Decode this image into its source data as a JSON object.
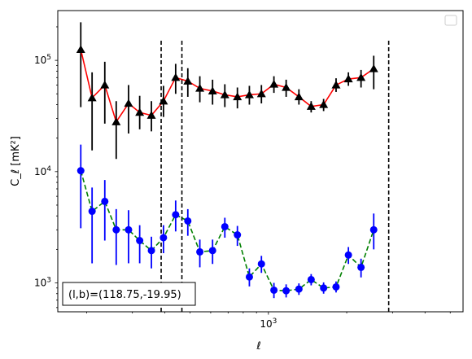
{
  "chart_data": {
    "type": "line",
    "xlabel": "ℓ",
    "ylabel": "C_ℓ [mK²]",
    "xscale": "log",
    "yscale": "log",
    "xlim": [
      155,
      5600
    ],
    "ylim": [
      550,
      280000
    ],
    "x_tick_labels": [
      {
        "value": 1000,
        "base": "10",
        "exp": "3"
      }
    ],
    "y_tick_labels": [
      {
        "value": 1000,
        "base": "10",
        "exp": "3"
      },
      {
        "value": 10000,
        "base": "10",
        "exp": "4"
      },
      {
        "value": 100000,
        "base": "10",
        "exp": "5"
      }
    ],
    "vlines": [
      387,
      465,
      2900
    ],
    "annotation": "(l,b)=(118.75,-19.95)",
    "legend": {
      "location": "top-right",
      "entries": []
    },
    "series": [
      {
        "line_color": "#ff0000",
        "marker_color": "#000000",
        "errorbar_color": "#000000",
        "marker": "triangle",
        "linestyle": "solid",
        "points": [
          {
            "x": 190,
            "y": 125000,
            "lo": 38000,
            "hi": 220000
          },
          {
            "x": 210,
            "y": 46000,
            "lo": 15500,
            "hi": 78000
          },
          {
            "x": 235,
            "y": 60000,
            "lo": 27000,
            "hi": 97000
          },
          {
            "x": 260,
            "y": 28000,
            "lo": 13000,
            "hi": 43000
          },
          {
            "x": 290,
            "y": 41000,
            "lo": 22000,
            "hi": 60000
          },
          {
            "x": 320,
            "y": 34000,
            "lo": 24000,
            "hi": 48000
          },
          {
            "x": 355,
            "y": 32000,
            "lo": 23000,
            "hi": 43000
          },
          {
            "x": 395,
            "y": 43000,
            "lo": 31000,
            "hi": 59000
          },
          {
            "x": 440,
            "y": 70000,
            "lo": 50000,
            "hi": 93000
          },
          {
            "x": 490,
            "y": 65000,
            "lo": 47000,
            "hi": 85000
          },
          {
            "x": 545,
            "y": 56000,
            "lo": 42000,
            "hi": 72000
          },
          {
            "x": 610,
            "y": 53000,
            "lo": 40000,
            "hi": 67000
          },
          {
            "x": 680,
            "y": 49000,
            "lo": 38000,
            "hi": 61000
          },
          {
            "x": 760,
            "y": 47000,
            "lo": 37000,
            "hi": 57000
          },
          {
            "x": 845,
            "y": 49000,
            "lo": 40000,
            "hi": 59000
          },
          {
            "x": 940,
            "y": 50000,
            "lo": 41000,
            "hi": 60000
          },
          {
            "x": 1050,
            "y": 61000,
            "lo": 51000,
            "hi": 72000
          },
          {
            "x": 1170,
            "y": 57000,
            "lo": 47000,
            "hi": 67000
          },
          {
            "x": 1310,
            "y": 47000,
            "lo": 40000,
            "hi": 55000
          },
          {
            "x": 1460,
            "y": 38500,
            "lo": 34000,
            "hi": 43000
          },
          {
            "x": 1630,
            "y": 40000,
            "lo": 35000,
            "hi": 45000
          },
          {
            "x": 1820,
            "y": 60000,
            "lo": 52000,
            "hi": 69000
          },
          {
            "x": 2030,
            "y": 68000,
            "lo": 59000,
            "hi": 78000
          },
          {
            "x": 2270,
            "y": 70000,
            "lo": 57000,
            "hi": 82000
          },
          {
            "x": 2540,
            "y": 84000,
            "lo": 55000,
            "hi": 110000
          }
        ]
      },
      {
        "line_color": "#008000",
        "marker_color": "#0000ff",
        "errorbar_color": "#0000ff",
        "marker": "circle",
        "linestyle": "dashed",
        "points": [
          {
            "x": 190,
            "y": 10200,
            "lo": 3100,
            "hi": 17500
          },
          {
            "x": 210,
            "y": 4400,
            "lo": 1500,
            "hi": 7200
          },
          {
            "x": 235,
            "y": 5400,
            "lo": 2400,
            "hi": 8400
          },
          {
            "x": 260,
            "y": 3000,
            "lo": 1450,
            "hi": 4600
          },
          {
            "x": 290,
            "y": 3000,
            "lo": 1500,
            "hi": 4500
          },
          {
            "x": 320,
            "y": 2400,
            "lo": 1500,
            "hi": 3300
          },
          {
            "x": 355,
            "y": 1950,
            "lo": 1350,
            "hi": 2600
          },
          {
            "x": 395,
            "y": 2550,
            "lo": 1850,
            "hi": 3300
          },
          {
            "x": 440,
            "y": 4100,
            "lo": 2900,
            "hi": 5500
          },
          {
            "x": 490,
            "y": 3600,
            "lo": 2650,
            "hi": 4600
          },
          {
            "x": 545,
            "y": 1900,
            "lo": 1380,
            "hi": 2450
          },
          {
            "x": 610,
            "y": 1950,
            "lo": 1480,
            "hi": 2450
          },
          {
            "x": 680,
            "y": 3200,
            "lo": 2550,
            "hi": 3850
          },
          {
            "x": 760,
            "y": 2700,
            "lo": 2150,
            "hi": 3250
          },
          {
            "x": 845,
            "y": 1130,
            "lo": 930,
            "hi": 1350
          },
          {
            "x": 940,
            "y": 1480,
            "lo": 1230,
            "hi": 1750
          },
          {
            "x": 1050,
            "y": 860,
            "lo": 730,
            "hi": 1000
          },
          {
            "x": 1170,
            "y": 850,
            "lo": 740,
            "hi": 970
          },
          {
            "x": 1310,
            "y": 880,
            "lo": 780,
            "hi": 990
          },
          {
            "x": 1460,
            "y": 1070,
            "lo": 950,
            "hi": 1200
          },
          {
            "x": 1630,
            "y": 900,
            "lo": 800,
            "hi": 1010
          },
          {
            "x": 1820,
            "y": 920,
            "lo": 820,
            "hi": 1030
          },
          {
            "x": 2030,
            "y": 1780,
            "lo": 1480,
            "hi": 2100
          },
          {
            "x": 2270,
            "y": 1380,
            "lo": 1120,
            "hi": 1650
          },
          {
            "x": 2540,
            "y": 3000,
            "lo": 2000,
            "hi": 4200
          }
        ]
      }
    ]
  }
}
